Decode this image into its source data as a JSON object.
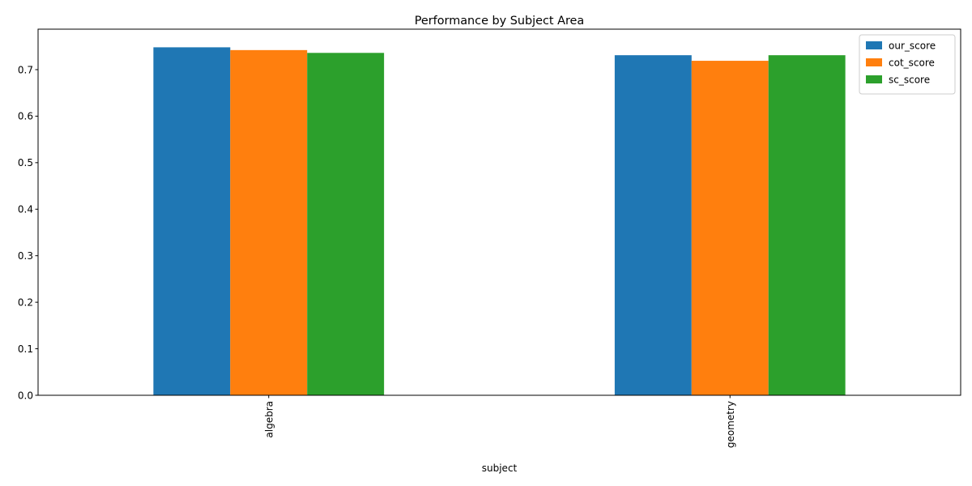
{
  "chart_data": {
    "type": "bar",
    "title": "Performance by Subject Area",
    "xlabel": "subject",
    "ylabel": "",
    "categories": [
      "algebra",
      "geometry"
    ],
    "series": [
      {
        "name": "our_score",
        "values": [
          0.748,
          0.731
        ],
        "color": "#1f77b4"
      },
      {
        "name": "cot_score",
        "values": [
          0.742,
          0.719
        ],
        "color": "#ff7f0e"
      },
      {
        "name": "sc_score",
        "values": [
          0.736,
          0.731
        ],
        "color": "#2ca02c"
      }
    ],
    "ylim": [
      0,
      0.787
    ],
    "yticks": [
      0.0,
      0.1,
      0.2,
      0.3,
      0.4,
      0.5,
      0.6,
      0.7
    ],
    "yticks_labels": [
      "0.0",
      "0.1",
      "0.2",
      "0.3",
      "0.4",
      "0.5",
      "0.6",
      "0.7"
    ],
    "grid": false,
    "legend_position": "top-right"
  }
}
